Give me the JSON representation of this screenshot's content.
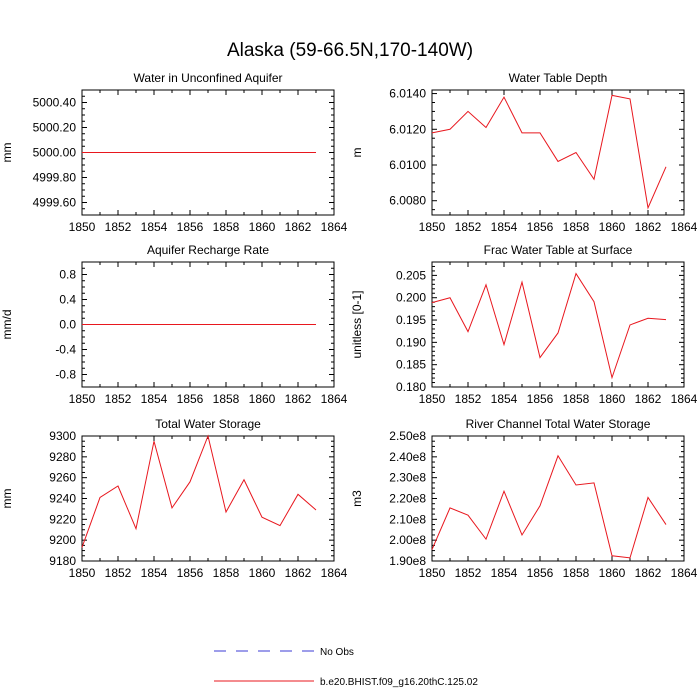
{
  "figure_title": "Alaska (59-66.5N,170-140W)",
  "colors": {
    "model": "#e8171e",
    "obs": "#3b3bd6",
    "axis": "#000000"
  },
  "legend": [
    {
      "label": "No Obs",
      "style": "dashed",
      "color": "#3b3bd6"
    },
    {
      "label": "b.e20.BHIST.f09_g16.20thC.125.02",
      "style": "solid",
      "color": "#e8171e"
    }
  ],
  "chart_data": [
    {
      "type": "line",
      "title": "Water in Unconfined Aquifer",
      "xlabel": "",
      "ylabel": "mm",
      "xlim": [
        1850,
        1864
      ],
      "ylim": [
        4999.5,
        5000.5
      ],
      "x": [
        1850,
        1851,
        1852,
        1853,
        1854,
        1855,
        1856,
        1857,
        1858,
        1859,
        1860,
        1861,
        1862,
        1863
      ],
      "series": [
        {
          "name": "b.e20.BHIST.f09_g16.20thC.125.02",
          "values": [
            5000,
            5000,
            5000,
            5000,
            5000,
            5000,
            5000,
            5000,
            5000,
            5000,
            5000,
            5000,
            5000,
            5000
          ]
        }
      ],
      "xticks": [
        1850,
        1852,
        1854,
        1856,
        1858,
        1860,
        1862,
        1864
      ],
      "xtick_labels": [
        "1850",
        "1852",
        "1854",
        "1856",
        "1858",
        "1860",
        "1862",
        "1864"
      ],
      "yticks": [
        4999.6,
        4999.8,
        5000.0,
        5000.2,
        5000.4
      ],
      "ytick_labels": [
        "4999.60",
        "4999.80",
        "5000.00",
        "5000.20",
        "5000.40"
      ],
      "y_minor": 0.05
    },
    {
      "type": "line",
      "title": "Water Table Depth",
      "xlabel": "",
      "ylabel": "m",
      "xlim": [
        1850,
        1864
      ],
      "ylim": [
        6.0072,
        6.0142
      ],
      "x": [
        1850,
        1851,
        1852,
        1853,
        1854,
        1855,
        1856,
        1857,
        1858,
        1859,
        1860,
        1861,
        1862,
        1863
      ],
      "series": [
        {
          "name": "b.e20.BHIST.f09_g16.20thC.125.02",
          "values": [
            6.0118,
            6.012,
            6.013,
            6.0121,
            6.0138,
            6.0118,
            6.0118,
            6.0102,
            6.0107,
            6.0092,
            6.0139,
            6.0137,
            6.0076,
            6.0099
          ]
        }
      ],
      "xticks": [
        1850,
        1852,
        1854,
        1856,
        1858,
        1860,
        1862,
        1864
      ],
      "xtick_labels": [
        "1850",
        "1852",
        "1854",
        "1856",
        "1858",
        "1860",
        "1862",
        "1864"
      ],
      "yticks": [
        6.008,
        6.01,
        6.012,
        6.014
      ],
      "ytick_labels": [
        "6.0080",
        "6.0100",
        "6.0120",
        "6.0140"
      ],
      "y_minor": 0.0005
    },
    {
      "type": "line",
      "title": "Aquifer Recharge Rate",
      "xlabel": "",
      "ylabel": "mm/d",
      "xlim": [
        1850,
        1864
      ],
      "ylim": [
        -1,
        1
      ],
      "x": [
        1850,
        1851,
        1852,
        1853,
        1854,
        1855,
        1856,
        1857,
        1858,
        1859,
        1860,
        1861,
        1862,
        1863
      ],
      "series": [
        {
          "name": "b.e20.BHIST.f09_g16.20thC.125.02",
          "values": [
            0,
            0,
            0,
            0,
            0,
            0,
            0,
            0,
            0,
            0,
            0,
            0,
            0,
            0
          ]
        }
      ],
      "xticks": [
        1850,
        1852,
        1854,
        1856,
        1858,
        1860,
        1862,
        1864
      ],
      "xtick_labels": [
        "1850",
        "1852",
        "1854",
        "1856",
        "1858",
        "1860",
        "1862",
        "1864"
      ],
      "yticks": [
        -0.8,
        -0.4,
        0.0,
        0.4,
        0.8
      ],
      "ytick_labels": [
        "-0.8",
        "-0.4",
        "0.0",
        "0.4",
        "0.8"
      ],
      "y_minor": 0.1
    },
    {
      "type": "line",
      "title": "Frac Water Table at Surface",
      "xlabel": "",
      "ylabel": "unitless [0-1]",
      "xlim": [
        1850,
        1864
      ],
      "ylim": [
        0.18,
        0.208
      ],
      "x": [
        1850,
        1851,
        1852,
        1853,
        1854,
        1855,
        1856,
        1857,
        1858,
        1859,
        1860,
        1861,
        1862,
        1863
      ],
      "series": [
        {
          "name": "b.e20.BHIST.f09_g16.20thC.125.02",
          "values": [
            0.1989,
            0.2,
            0.1924,
            0.2029,
            0.1895,
            0.2035,
            0.1866,
            0.1921,
            0.2054,
            0.1991,
            0.1821,
            0.1939,
            0.1954,
            0.1951
          ]
        }
      ],
      "xticks": [
        1850,
        1852,
        1854,
        1856,
        1858,
        1860,
        1862,
        1864
      ],
      "xtick_labels": [
        "1850",
        "1852",
        "1854",
        "1856",
        "1858",
        "1860",
        "1862",
        "1864"
      ],
      "yticks": [
        0.18,
        0.185,
        0.19,
        0.195,
        0.2,
        0.205
      ],
      "ytick_labels": [
        "0.180",
        "0.185",
        "0.190",
        "0.195",
        "0.200",
        "0.205"
      ],
      "y_minor": 0.001
    },
    {
      "type": "line",
      "title": "Total Water Storage",
      "xlabel": "",
      "ylabel": "mm",
      "xlim": [
        1850,
        1864
      ],
      "ylim": [
        9180,
        9300
      ],
      "x": [
        1850,
        1851,
        1852,
        1853,
        1854,
        1855,
        1856,
        1857,
        1858,
        1859,
        1860,
        1861,
        1862,
        1863
      ],
      "series": [
        {
          "name": "b.e20.BHIST.f09_g16.20thC.125.02",
          "values": [
            9193,
            9241,
            9252,
            9211,
            9295,
            9231,
            9256,
            9300,
            9227,
            9258,
            9222,
            9214,
            9244,
            9229
          ]
        }
      ],
      "xticks": [
        1850,
        1852,
        1854,
        1856,
        1858,
        1860,
        1862,
        1864
      ],
      "xtick_labels": [
        "1850",
        "1852",
        "1854",
        "1856",
        "1858",
        "1860",
        "1862",
        "1864"
      ],
      "yticks": [
        9180,
        9200,
        9220,
        9240,
        9260,
        9280,
        9300
      ],
      "ytick_labels": [
        "9180",
        "9200",
        "9220",
        "9240",
        "9260",
        "9280",
        "9300"
      ],
      "y_minor": 5
    },
    {
      "type": "line",
      "title": "River Channel Total Water Storage",
      "xlabel": "",
      "ylabel": "m3",
      "xlim": [
        1850,
        1864
      ],
      "ylim": [
        190000000.0,
        250000000.0
      ],
      "x": [
        1850,
        1851,
        1852,
        1853,
        1854,
        1855,
        1856,
        1857,
        1858,
        1859,
        1860,
        1861,
        1862,
        1863
      ],
      "series": [
        {
          "name": "b.e20.BHIST.f09_g16.20thC.125.02",
          "values": [
            195500000.0,
            215500000.0,
            212000000.0,
            200500000.0,
            223500000.0,
            202500000.0,
            216500000.0,
            240500000.0,
            226500000.0,
            227500000.0,
            192500000.0,
            191500000.0,
            220500000.0,
            207500000.0
          ]
        }
      ],
      "xticks": [
        1850,
        1852,
        1854,
        1856,
        1858,
        1860,
        1862,
        1864
      ],
      "xtick_labels": [
        "1850",
        "1852",
        "1854",
        "1856",
        "1858",
        "1860",
        "1862",
        "1864"
      ],
      "yticks": [
        190000000.0,
        200000000.0,
        210000000.0,
        220000000.0,
        230000000.0,
        240000000.0,
        250000000.0
      ],
      "ytick_labels": [
        "1.90e8",
        "2.00e8",
        "2.10e8",
        "2.20e8",
        "2.30e8",
        "2.40e8",
        "2.50e8"
      ],
      "y_minor": 2500000.0
    }
  ]
}
